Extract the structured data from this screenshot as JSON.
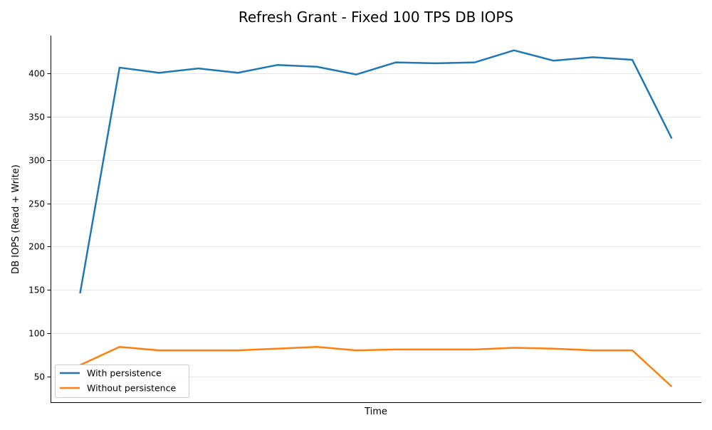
{
  "chart_data": {
    "type": "line",
    "title": "Refresh Grant - Fixed 100 TPS DB IOPS",
    "xlabel": "Time",
    "ylabel": "DB IOPS (Read + Write)",
    "ylim": [
      20,
      444
    ],
    "yticks": [
      50,
      100,
      150,
      200,
      250,
      300,
      350,
      400
    ],
    "grid": "horizontal",
    "legend_position": "lower-left",
    "x": [
      1,
      2,
      3,
      4,
      5,
      6,
      7,
      8,
      9,
      10,
      11,
      12,
      13,
      14,
      15,
      16
    ],
    "series": [
      {
        "name": "With persistence",
        "color": "#1f77b4",
        "values": [
          146,
          407,
          401,
          406,
          401,
          410,
          408,
          399,
          413,
          412,
          413,
          427,
          415,
          419,
          416,
          325
        ]
      },
      {
        "name": "Without persistence",
        "color": "#ff7f0e",
        "values": [
          63,
          84,
          80,
          80,
          80,
          82,
          84,
          80,
          81,
          81,
          81,
          83,
          82,
          80,
          80,
          38
        ]
      }
    ]
  }
}
